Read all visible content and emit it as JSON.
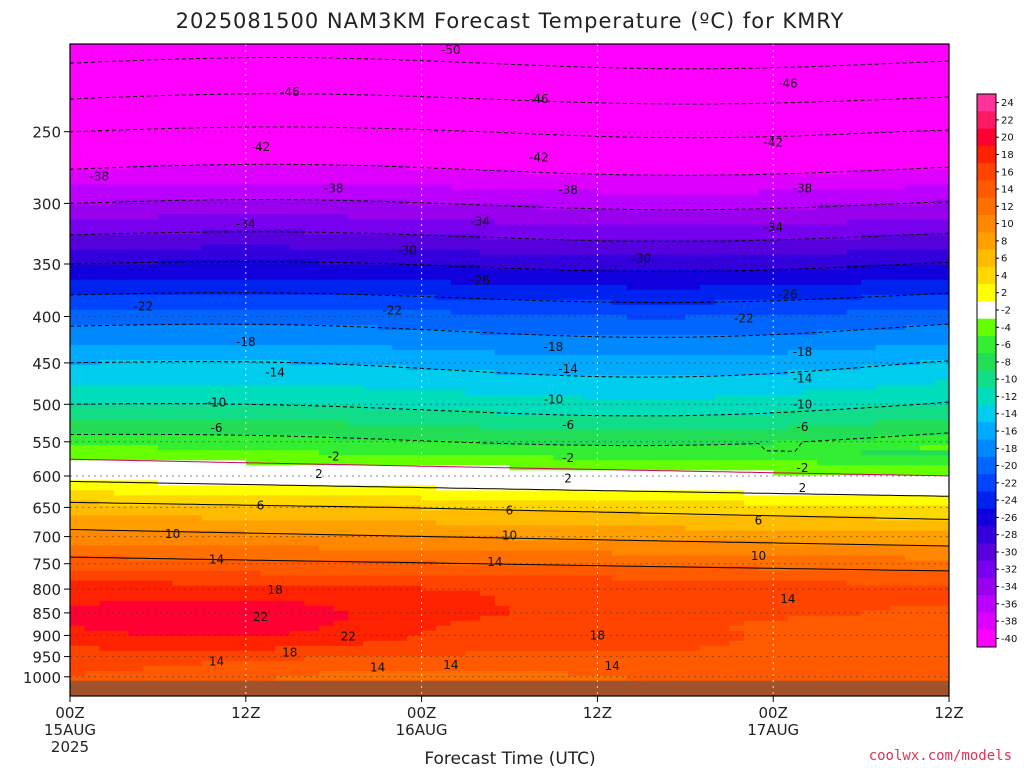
{
  "title": "2025081500 NAM3KM Forecast Temperature (ºC) for KMRY",
  "xlabel": "Forecast Time (UTC)",
  "credit": "coolwx.com/models",
  "chart_data": {
    "type": "heatmap",
    "title": "2025081500 NAM3KM Forecast Temperature (ºC) for KMRY",
    "xlabel": "Forecast Time (UTC)",
    "ylabel": "",
    "x_range_hours": [
      0,
      60
    ],
    "y_range_hpa": [
      200,
      1050
    ],
    "y_scale": "log",
    "y_ticks": [
      250,
      300,
      350,
      400,
      450,
      500,
      550,
      600,
      650,
      700,
      750,
      800,
      850,
      900,
      950,
      1000
    ],
    "x_ticks": [
      {
        "hour": 0,
        "lines": [
          "00Z",
          "15AUG",
          "2025"
        ]
      },
      {
        "hour": 12,
        "lines": [
          "12Z"
        ]
      },
      {
        "hour": 24,
        "lines": [
          "00Z",
          "16AUG"
        ]
      },
      {
        "hour": 36,
        "lines": [
          "12Z"
        ]
      },
      {
        "hour": 48,
        "lines": [
          "00Z",
          "17AUG"
        ]
      },
      {
        "hour": 60,
        "lines": [
          "12Z"
        ]
      }
    ],
    "grid": true,
    "colorbar": {
      "labels": [
        24,
        22,
        20,
        18,
        16,
        14,
        12,
        10,
        8,
        6,
        4,
        2,
        -2,
        -4,
        -6,
        -8,
        -10,
        -12,
        -14,
        -16,
        -18,
        -20,
        -22,
        -24,
        -26,
        -28,
        -30,
        -32,
        -34,
        -36,
        -38,
        -40
      ],
      "colors": [
        "#ff3399",
        "#ff1a66",
        "#ff0033",
        "#ff2200",
        "#ff4400",
        "#ff5a00",
        "#ff7000",
        "#ff8800",
        "#ffa000",
        "#ffbb00",
        "#ffd800",
        "#ffff00",
        "#ffffff",
        "#66ff00",
        "#33ee33",
        "#22dd55",
        "#11dd88",
        "#00ddbb",
        "#00ccee",
        "#00aaff",
        "#0088ff",
        "#0066ff",
        "#0044ff",
        "#0022ee",
        "#1100dd",
        "#3300dd",
        "#5500dd",
        "#7700ee",
        "#9900ee",
        "#bb00ff",
        "#dd00ff",
        "#ff00ff"
      ]
    },
    "profile_at_00Z_15AUG": {
      "pressure_hpa": [
        200,
        250,
        300,
        350,
        400,
        450,
        500,
        550,
        600,
        650,
        700,
        750,
        800,
        850,
        900,
        950,
        1000
      ],
      "temperature_c": [
        -52,
        -42,
        -34,
        -26,
        -19,
        -14,
        -10,
        -5,
        1,
        7,
        11,
        15,
        19,
        20,
        19,
        17,
        16
      ]
    },
    "contour_labels": [
      {
        "text": "-50",
        "hour": 26,
        "p": 203
      },
      {
        "text": "-46",
        "hour": 15,
        "p": 226
      },
      {
        "text": "-46",
        "hour": 32,
        "p": 230
      },
      {
        "text": "-46",
        "hour": 49,
        "p": 221
      },
      {
        "text": "-42",
        "hour": 13,
        "p": 260
      },
      {
        "text": "-42",
        "hour": 32,
        "p": 267
      },
      {
        "text": "-42",
        "hour": 48,
        "p": 257
      },
      {
        "text": "-38",
        "hour": 2,
        "p": 280
      },
      {
        "text": "-38",
        "hour": 18,
        "p": 289
      },
      {
        "text": "-38",
        "hour": 34,
        "p": 290
      },
      {
        "text": "-38",
        "hour": 50,
        "p": 289
      },
      {
        "text": "-34",
        "hour": 12,
        "p": 316
      },
      {
        "text": "-34",
        "hour": 28,
        "p": 314
      },
      {
        "text": "-34",
        "hour": 48,
        "p": 319
      },
      {
        "text": "-30",
        "hour": 23,
        "p": 338
      },
      {
        "text": "-30",
        "hour": 39,
        "p": 345
      },
      {
        "text": "-26",
        "hour": 28,
        "p": 365
      },
      {
        "text": "-26",
        "hour": 49,
        "p": 378
      },
      {
        "text": "-22",
        "hour": 5,
        "p": 390
      },
      {
        "text": "-22",
        "hour": 22,
        "p": 394
      },
      {
        "text": "-22",
        "hour": 46,
        "p": 402
      },
      {
        "text": "-18",
        "hour": 12,
        "p": 427
      },
      {
        "text": "-18",
        "hour": 33,
        "p": 432
      },
      {
        "text": "-18",
        "hour": 50,
        "p": 438
      },
      {
        "text": "-14",
        "hour": 14,
        "p": 461
      },
      {
        "text": "-14",
        "hour": 34,
        "p": 457
      },
      {
        "text": "-14",
        "hour": 50,
        "p": 468
      },
      {
        "text": "-10",
        "hour": 10,
        "p": 498
      },
      {
        "text": "-10",
        "hour": 33,
        "p": 494
      },
      {
        "text": "-10",
        "hour": 50,
        "p": 500
      },
      {
        "text": "-6",
        "hour": 10,
        "p": 531
      },
      {
        "text": "-6",
        "hour": 34,
        "p": 527
      },
      {
        "text": "-6",
        "hour": 50,
        "p": 530
      },
      {
        "text": "-2",
        "hour": 18,
        "p": 571
      },
      {
        "text": "-2",
        "hour": 34,
        "p": 573
      },
      {
        "text": "-2",
        "hour": 50,
        "p": 588
      },
      {
        "text": "2",
        "hour": 17,
        "p": 597
      },
      {
        "text": "2",
        "hour": 34,
        "p": 604
      },
      {
        "text": "2",
        "hour": 50,
        "p": 619
      },
      {
        "text": "6",
        "hour": 13,
        "p": 647
      },
      {
        "text": "6",
        "hour": 30,
        "p": 655
      },
      {
        "text": "6",
        "hour": 47,
        "p": 672
      },
      {
        "text": "10",
        "hour": 7,
        "p": 695
      },
      {
        "text": "10",
        "hour": 30,
        "p": 698
      },
      {
        "text": "10",
        "hour": 47,
        "p": 735
      },
      {
        "text": "14",
        "hour": 10,
        "p": 742
      },
      {
        "text": "14",
        "hour": 29,
        "p": 747
      },
      {
        "text": "14",
        "hour": 49,
        "p": 820
      },
      {
        "text": "18",
        "hour": 14,
        "p": 802
      },
      {
        "text": "18",
        "hour": 36,
        "p": 900
      },
      {
        "text": "22",
        "hour": 13,
        "p": 859
      },
      {
        "text": "22",
        "hour": 19,
        "p": 903
      },
      {
        "text": "18",
        "hour": 15,
        "p": 940
      },
      {
        "text": "14",
        "hour": 10,
        "p": 962
      },
      {
        "text": "14",
        "hour": 21,
        "p": 977
      },
      {
        "text": "14",
        "hour": 26,
        "p": 971
      },
      {
        "text": "14",
        "hour": 37,
        "p": 973
      }
    ]
  }
}
